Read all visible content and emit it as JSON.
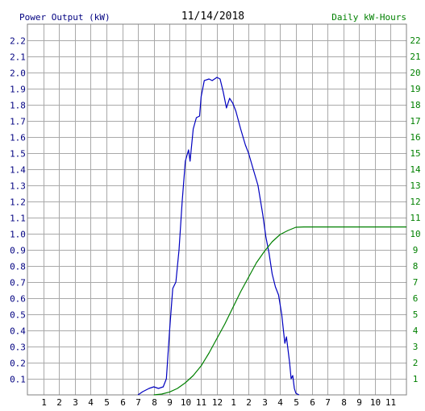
{
  "chart_data": {
    "type": "line",
    "title": "11/14/2018",
    "left_axis_label": "Power Output (kW)",
    "right_axis_label": "Daily kW-Hours",
    "colors": {
      "power": "#0000c0",
      "energy": "#008000",
      "left_label": "#000080",
      "right_label": "#008000",
      "title": "#000000",
      "grid": "#a9a9a9"
    },
    "x_ticks": [
      "1",
      "2",
      "3",
      "4",
      "5",
      "6",
      "7",
      "8",
      "9",
      "10",
      "11",
      "12",
      "1",
      "2",
      "3",
      "4",
      "5",
      "6",
      "7",
      "8",
      "9",
      "10",
      "11"
    ],
    "left_ticks": [
      "0.1",
      "0.2",
      "0.3",
      "0.4",
      "0.5",
      "0.6",
      "0.7",
      "0.8",
      "0.9",
      "1.0",
      "1.1",
      "1.2",
      "1.3",
      "1.4",
      "1.5",
      "1.6",
      "1.7",
      "1.8",
      "1.9",
      "2.0",
      "2.1",
      "2.2"
    ],
    "right_ticks": [
      "1",
      "2",
      "3",
      "4",
      "5",
      "6",
      "7",
      "8",
      "9",
      "10",
      "11",
      "12",
      "13",
      "14",
      "15",
      "16",
      "17",
      "18",
      "19",
      "20",
      "21",
      "22"
    ],
    "x_range_hours": [
      0,
      24
    ],
    "left_range": [
      0,
      2.3
    ],
    "right_range": [
      0,
      23
    ],
    "grid": true,
    "series": [
      {
        "key": "power",
        "points": [
          [
            7.0,
            0.0
          ],
          [
            7.3,
            0.02
          ],
          [
            7.7,
            0.04
          ],
          [
            8.0,
            0.05
          ],
          [
            8.3,
            0.04
          ],
          [
            8.6,
            0.05
          ],
          [
            8.8,
            0.1
          ],
          [
            9.0,
            0.4
          ],
          [
            9.2,
            0.66
          ],
          [
            9.4,
            0.7
          ],
          [
            9.6,
            0.9
          ],
          [
            9.8,
            1.2
          ],
          [
            10.0,
            1.45
          ],
          [
            10.2,
            1.52
          ],
          [
            10.3,
            1.45
          ],
          [
            10.5,
            1.65
          ],
          [
            10.7,
            1.72
          ],
          [
            10.9,
            1.73
          ],
          [
            11.0,
            1.85
          ],
          [
            11.2,
            1.95
          ],
          [
            11.5,
            1.96
          ],
          [
            11.7,
            1.95
          ],
          [
            12.0,
            1.97
          ],
          [
            12.2,
            1.96
          ],
          [
            12.4,
            1.88
          ],
          [
            12.6,
            1.78
          ],
          [
            12.8,
            1.84
          ],
          [
            13.0,
            1.81
          ],
          [
            13.2,
            1.76
          ],
          [
            13.5,
            1.65
          ],
          [
            13.8,
            1.55
          ],
          [
            14.0,
            1.5
          ],
          [
            14.3,
            1.4
          ],
          [
            14.6,
            1.3
          ],
          [
            14.9,
            1.12
          ],
          [
            15.1,
            0.98
          ],
          [
            15.3,
            0.88
          ],
          [
            15.5,
            0.75
          ],
          [
            15.7,
            0.67
          ],
          [
            15.9,
            0.62
          ],
          [
            16.1,
            0.5
          ],
          [
            16.3,
            0.32
          ],
          [
            16.4,
            0.36
          ],
          [
            16.6,
            0.2
          ],
          [
            16.7,
            0.1
          ],
          [
            16.8,
            0.12
          ],
          [
            16.9,
            0.04
          ],
          [
            17.0,
            0.01
          ],
          [
            17.2,
            0.0
          ]
        ]
      },
      {
        "key": "energy",
        "points": [
          [
            8.0,
            0.0
          ],
          [
            8.5,
            0.05
          ],
          [
            9.0,
            0.18
          ],
          [
            9.5,
            0.4
          ],
          [
            10.0,
            0.75
          ],
          [
            10.5,
            1.2
          ],
          [
            11.0,
            1.8
          ],
          [
            11.5,
            2.6
          ],
          [
            12.0,
            3.5
          ],
          [
            12.5,
            4.4
          ],
          [
            13.0,
            5.4
          ],
          [
            13.5,
            6.4
          ],
          [
            14.0,
            7.3
          ],
          [
            14.5,
            8.2
          ],
          [
            15.0,
            8.9
          ],
          [
            15.5,
            9.5
          ],
          [
            16.0,
            9.95
          ],
          [
            16.5,
            10.2
          ],
          [
            17.0,
            10.4
          ],
          [
            17.5,
            10.42
          ],
          [
            24.0,
            10.42
          ]
        ]
      }
    ]
  }
}
